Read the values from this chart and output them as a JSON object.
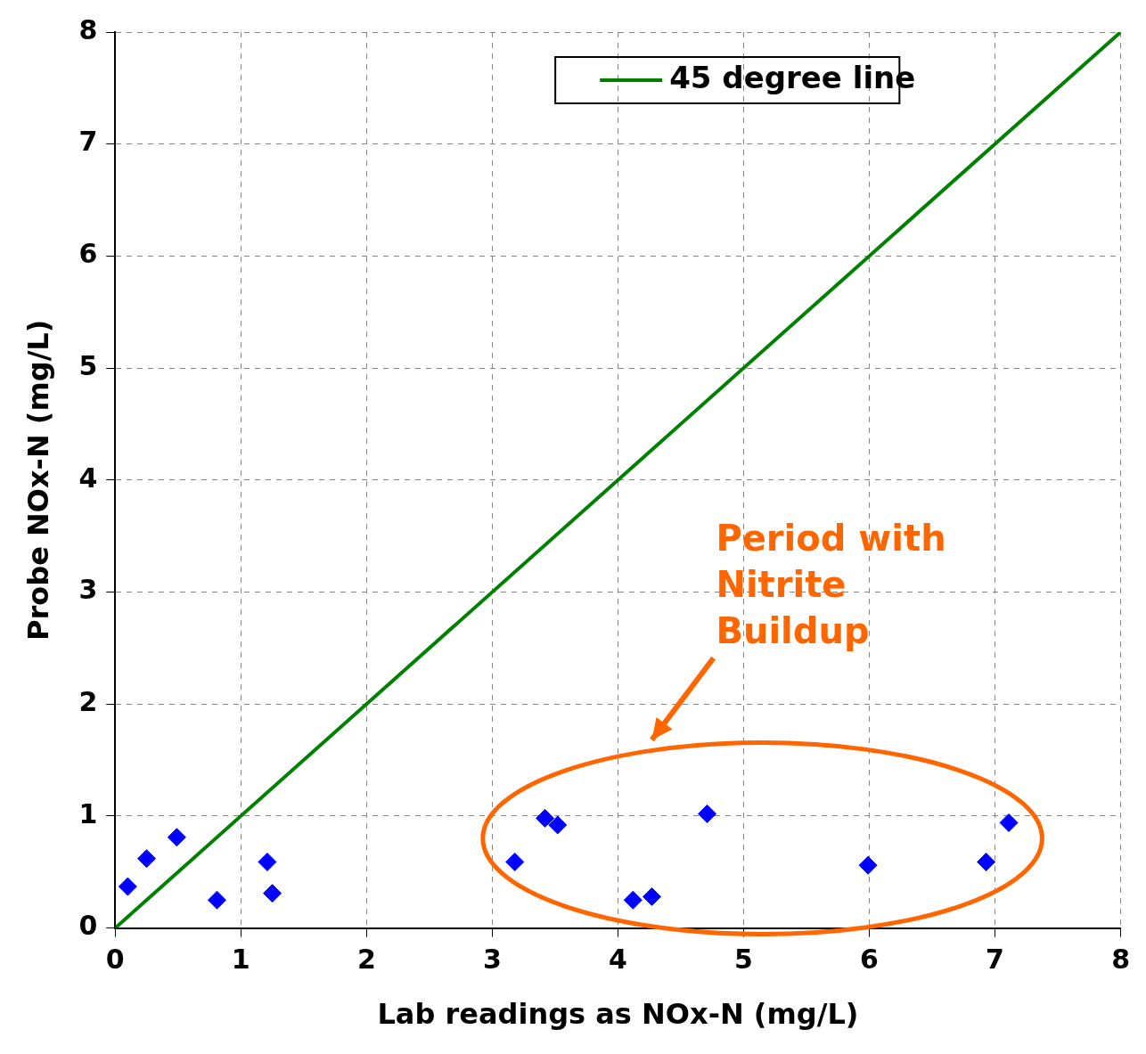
{
  "chart_data": {
    "type": "scatter",
    "xlabel": "Lab readings as NOx-N (mg/L)",
    "ylabel": "Probe NOx-N (mg/L)",
    "xlim": [
      0,
      8
    ],
    "ylim": [
      0,
      8
    ],
    "xticks": [
      0,
      1,
      2,
      3,
      4,
      5,
      6,
      7,
      8
    ],
    "yticks": [
      0,
      1,
      2,
      3,
      4,
      5,
      6,
      7,
      8
    ],
    "grid": true,
    "legend": "top right",
    "marker": "diamond",
    "series": [
      {
        "color": "#0000ff",
        "x": [
          0.1,
          0.25,
          0.49,
          0.81,
          1.21,
          1.25,
          3.18,
          3.42,
          3.52,
          4.12,
          4.27,
          4.71,
          5.99,
          6.93,
          7.11
        ],
        "values": [
          0.37,
          0.62,
          0.81,
          0.25,
          0.59,
          0.31,
          0.59,
          0.98,
          0.92,
          0.25,
          0.28,
          1.02,
          0.56,
          0.59,
          0.94
        ]
      },
      {
        "type": "line",
        "name": "45 degree line",
        "color": "#008000",
        "x": [
          0,
          8
        ],
        "values": [
          0,
          8
        ],
        "marker": "none",
        "line_style": "solid"
      }
    ],
    "annotations": [
      "Period with Nitrite Buildup"
    ]
  }
}
